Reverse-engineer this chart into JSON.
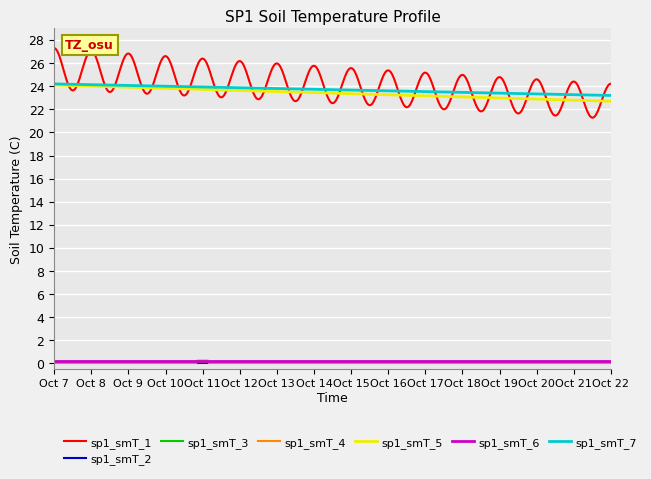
{
  "title": "SP1 Soil Temperature Profile",
  "xlabel": "Time",
  "ylabel": "Soil Temperature (C)",
  "annotation_text": "TZ_osu",
  "annotation_color": "#cc0000",
  "annotation_bg": "#ffff99",
  "annotation_border": "#999900",
  "ylim": [
    -0.5,
    29
  ],
  "yticks": [
    0,
    2,
    4,
    6,
    8,
    10,
    12,
    14,
    16,
    18,
    20,
    22,
    24,
    26,
    28
  ],
  "xtick_labels": [
    "Oct 7",
    "Oct 8",
    "Oct 9",
    "Oct 10",
    "Oct 11",
    "Oct 12",
    "Oct 13",
    "Oct 14",
    "Oct 15",
    "Oct 16",
    "Oct 17",
    "Oct 18",
    "Oct 19",
    "Oct 20",
    "Oct 21",
    "Oct 22"
  ],
  "series_order": [
    "sp1_smT_1",
    "sp1_smT_2",
    "sp1_smT_3",
    "sp1_smT_4",
    "sp1_smT_5",
    "sp1_smT_6",
    "sp1_smT_7"
  ],
  "colors": {
    "sp1_smT_1": "#ff0000",
    "sp1_smT_2": "#0000cc",
    "sp1_smT_3": "#00cc00",
    "sp1_smT_4": "#ff8800",
    "sp1_smT_5": "#eeee00",
    "sp1_smT_6": "#cc00cc",
    "sp1_smT_7": "#00cccc"
  },
  "linewidths": {
    "sp1_smT_1": 1.5,
    "sp1_smT_2": 1.5,
    "sp1_smT_3": 1.5,
    "sp1_smT_4": 1.5,
    "sp1_smT_5": 2.0,
    "sp1_smT_6": 2.0,
    "sp1_smT_7": 2.0
  },
  "bg_color": "#e8e8e8",
  "fig_bg_color": "#f0f0f0",
  "grid_color": "#ffffff",
  "legend_ncol": 6
}
